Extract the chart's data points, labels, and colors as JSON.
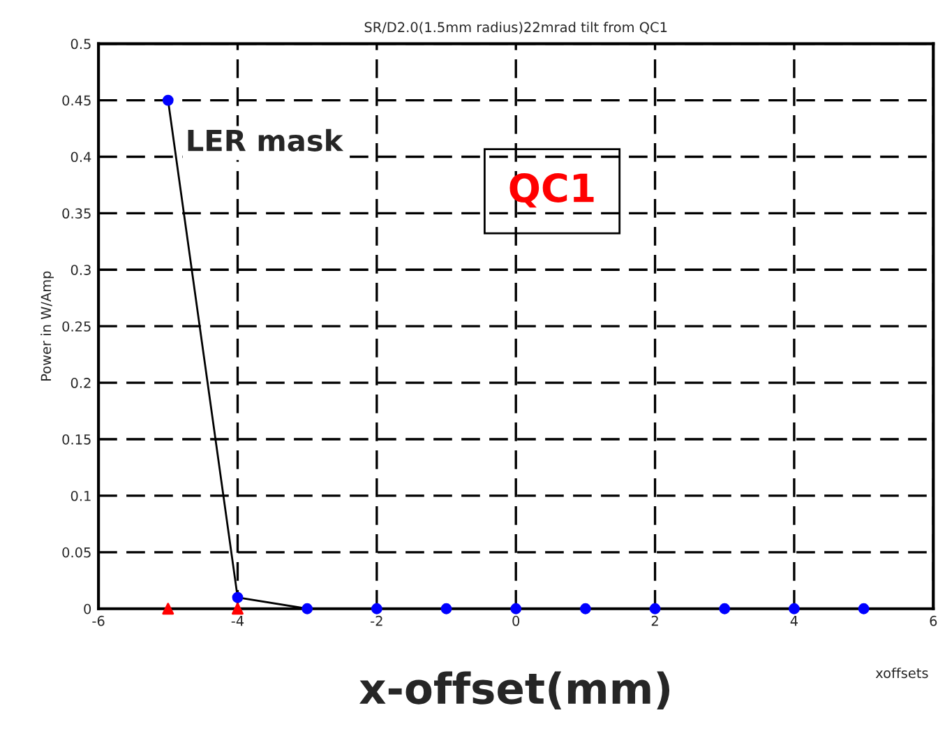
{
  "chart_data": {
    "type": "line",
    "title": "SR/D2.0(1.5mm radius)22mrad tilt from QC1",
    "xlabel": "x-offset(mm)",
    "ylabel": "Power in W/Amp",
    "annotations": [
      "LER mask",
      "QC1",
      "xoffsets"
    ],
    "series": [
      {
        "color": "#0000ff",
        "x": [
          -5,
          -4,
          -3,
          -2,
          -1,
          0,
          1,
          2,
          3,
          4,
          5
        ],
        "values": [
          0.45,
          0.01,
          0,
          0,
          0,
          0,
          0,
          0,
          0,
          0,
          0
        ],
        "marker": "circle"
      },
      {
        "type": "scatter",
        "color": "#ff0000",
        "x": [
          -5,
          -4
        ],
        "values": [
          0,
          0
        ],
        "marker": "triangle"
      }
    ],
    "xlim": [
      -6,
      6
    ],
    "xticks": [
      -6,
      -4,
      -2,
      0,
      2,
      4,
      6
    ],
    "ylim": [
      0,
      0.5
    ],
    "yticks": [
      0,
      0.05,
      0.1,
      0.15,
      0.2,
      0.25,
      0.3,
      0.35,
      0.4,
      0.45,
      0.5
    ],
    "grid": true,
    "legend": false
  }
}
